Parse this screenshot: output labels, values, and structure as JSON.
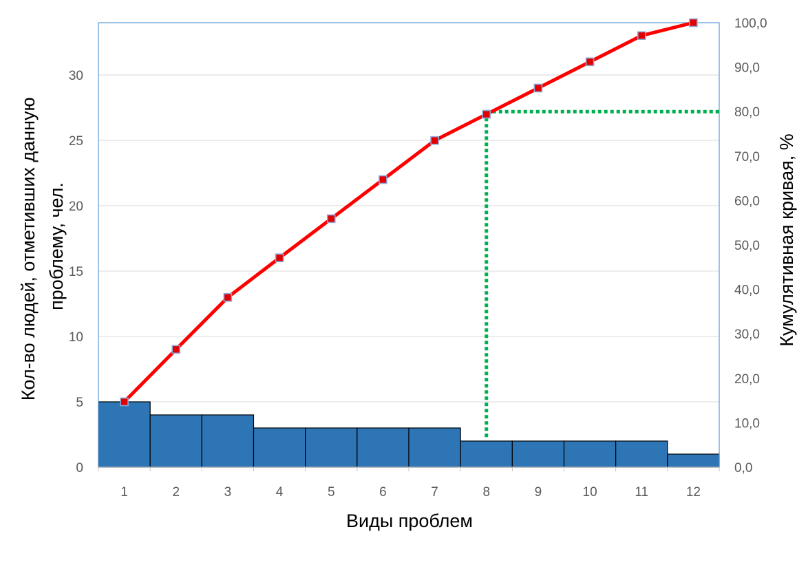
{
  "chart_data": {
    "type": "bar",
    "xlabel": "Виды проблем",
    "ylabel": "Кол-во людей, отметивших данную проблему, чел.",
    "ylabel_lines": [
      "Кол-во людей, отметивших данную",
      "проблему, чел."
    ],
    "y2label": "Кумулятивная кривая, %",
    "categories": [
      "1",
      "2",
      "3",
      "4",
      "5",
      "6",
      "7",
      "8",
      "9",
      "10",
      "11",
      "12"
    ],
    "series": [
      {
        "type": "bar",
        "axis": "left",
        "values": [
          5,
          4,
          4,
          3,
          3,
          3,
          3,
          2,
          2,
          2,
          2,
          1
        ]
      },
      {
        "type": "line",
        "axis": "right",
        "values": [
          14.7,
          26.5,
          38.2,
          47.1,
          55.9,
          64.7,
          73.5,
          79.4,
          85.3,
          91.2,
          97.1,
          100.0
        ]
      }
    ],
    "ylim": [
      0,
      34
    ],
    "yticks": [
      "0",
      "5",
      "10",
      "15",
      "20",
      "25",
      "30"
    ],
    "y2lim": [
      0,
      100
    ],
    "y2ticks": [
      "0,0",
      "10,0",
      "20,0",
      "30,0",
      "40,0",
      "50,0",
      "60,0",
      "70,0",
      "80,0",
      "90,0",
      "100,0"
    ],
    "threshold": {
      "y2_value": 80,
      "category": "8"
    },
    "grid": true,
    "legend": "none",
    "colors": {
      "bar_fill": "#2e75b6",
      "bar_stroke": "#000000",
      "line": "#ff0000",
      "marker_fill": "#e00000",
      "marker_stroke": "#8ea9db",
      "threshold_line": "#00b050",
      "grid": "#d9d9d9",
      "frame": "#5b9bd5",
      "tick_text": "#595959"
    }
  }
}
